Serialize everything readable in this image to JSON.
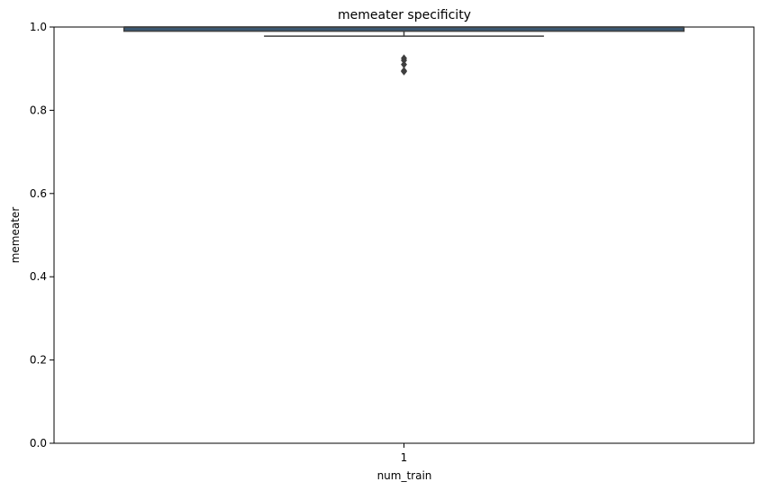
{
  "chart_data": {
    "type": "box",
    "title": "memeater specificity",
    "xlabel": "num_train",
    "ylabel": "memeater",
    "categories": [
      "1"
    ],
    "ylim": [
      0,
      1
    ],
    "yticks": [
      "0.0",
      "0.2",
      "0.4",
      "0.6",
      "0.8",
      "1.0"
    ],
    "grid": false,
    "boxes": [
      {
        "category": "1",
        "whisker_low": 0.978,
        "q1": 0.99,
        "median": 1.0,
        "q3": 1.0,
        "whisker_high": 1.0,
        "outliers": [
          0.925,
          0.92,
          0.91,
          0.895,
          0.893
        ]
      }
    ],
    "colors": {
      "box_fill": "#3b5872",
      "line": "#3f3f3f"
    }
  }
}
